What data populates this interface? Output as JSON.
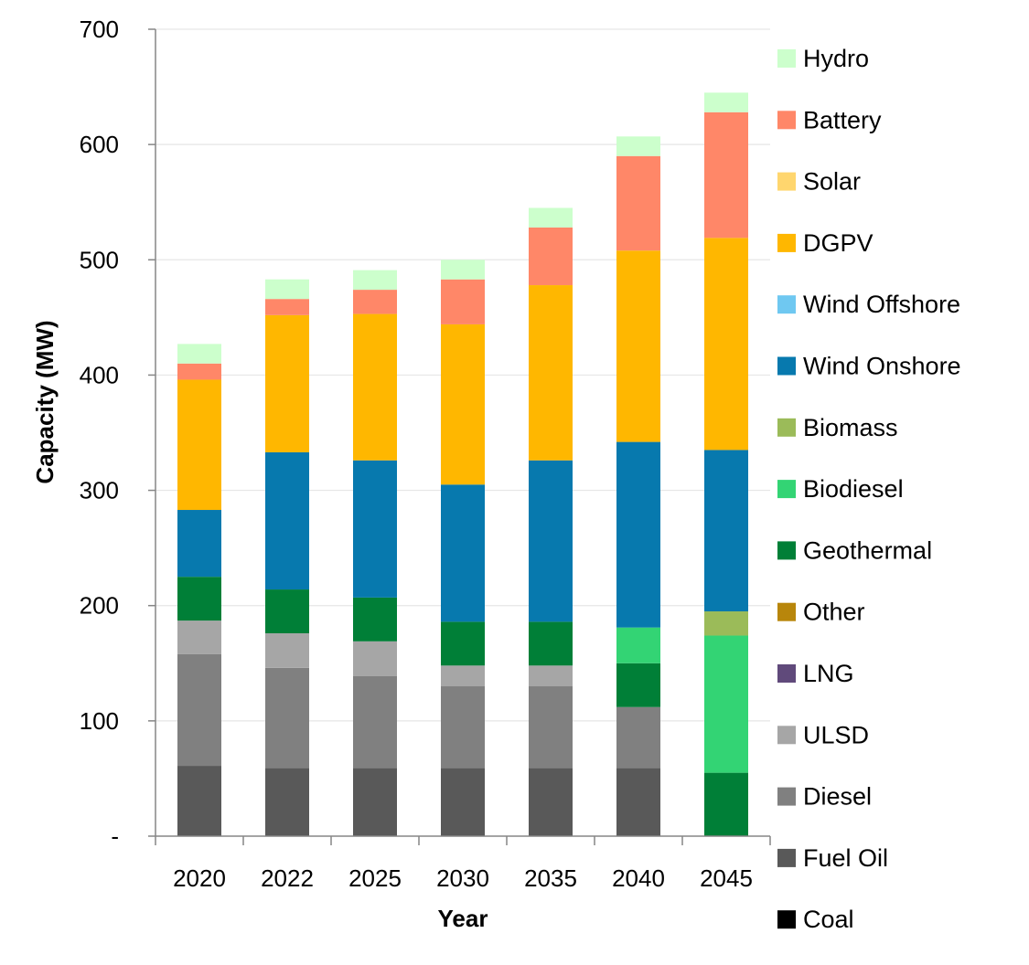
{
  "chart_data": {
    "type": "bar",
    "stacked": true,
    "xlabel": "Year",
    "ylabel": "Capacity (MW)",
    "ylim": [
      0,
      700
    ],
    "y_ticks": [
      0,
      100,
      200,
      300,
      400,
      500,
      600,
      700
    ],
    "y_tick_labels": [
      "-",
      "100",
      "200",
      "300",
      "400",
      "500",
      "600",
      "700"
    ],
    "grid": true,
    "legend_position": "right",
    "categories": [
      "2020",
      "2022",
      "2025",
      "2030",
      "2035",
      "2040",
      "2045"
    ],
    "series": [
      {
        "name": "Coal",
        "color": "#000000",
        "values": [
          0,
          0,
          0,
          0,
          0,
          0,
          0
        ]
      },
      {
        "name": "Fuel Oil",
        "color": "#595959",
        "values": [
          61,
          59,
          59,
          59,
          59,
          59,
          0
        ]
      },
      {
        "name": "Diesel",
        "color": "#808080",
        "values": [
          97,
          87,
          80,
          71,
          71,
          53,
          0
        ]
      },
      {
        "name": "ULSD",
        "color": "#a6a6a6",
        "values": [
          29,
          30,
          30,
          18,
          18,
          0,
          0
        ]
      },
      {
        "name": "LNG",
        "color": "#604a7b",
        "values": [
          0,
          0,
          0,
          0,
          0,
          0,
          0
        ]
      },
      {
        "name": "Other",
        "color": "#b8860b",
        "values": [
          0,
          0,
          0,
          0,
          0,
          0,
          0
        ]
      },
      {
        "name": "Geothermal",
        "color": "#007f37",
        "values": [
          38,
          38,
          38,
          38,
          38,
          38,
          55
        ]
      },
      {
        "name": "Biodiesel",
        "color": "#33d474",
        "values": [
          0,
          0,
          0,
          0,
          0,
          31,
          119
        ]
      },
      {
        "name": "Biomass",
        "color": "#9bbb59",
        "values": [
          0,
          0,
          0,
          0,
          0,
          0,
          21
        ]
      },
      {
        "name": "Wind Onshore",
        "color": "#0779ae",
        "values": [
          58,
          119,
          119,
          119,
          140,
          161,
          140
        ]
      },
      {
        "name": "Wind Offshore",
        "color": "#6fc8f1",
        "values": [
          0,
          0,
          0,
          0,
          0,
          0,
          0
        ]
      },
      {
        "name": "DGPV",
        "color": "#ffb700",
        "values": [
          113,
          119,
          127,
          139,
          152,
          166,
          184
        ]
      },
      {
        "name": "Solar",
        "color": "#ffd66e",
        "values": [
          0,
          0,
          0,
          0,
          0,
          0,
          0
        ]
      },
      {
        "name": "Battery",
        "color": "#ff8768",
        "values": [
          14,
          14,
          21,
          39,
          50,
          82,
          109
        ]
      },
      {
        "name": "Hydro",
        "color": "#ccffcc",
        "values": [
          17,
          17,
          17,
          17,
          17,
          17,
          17
        ]
      }
    ]
  }
}
